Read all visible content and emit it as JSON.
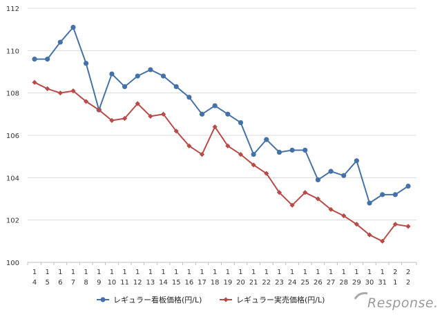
{
  "chart_data": {
    "type": "line",
    "x": [
      [
        "1",
        "4"
      ],
      [
        "1",
        "5"
      ],
      [
        "1",
        "6"
      ],
      [
        "1",
        "7"
      ],
      [
        "1",
        "8"
      ],
      [
        "1",
        "9"
      ],
      [
        "1",
        "10"
      ],
      [
        "1",
        "11"
      ],
      [
        "1",
        "12"
      ],
      [
        "1",
        "13"
      ],
      [
        "1",
        "14"
      ],
      [
        "1",
        "15"
      ],
      [
        "1",
        "16"
      ],
      [
        "1",
        "17"
      ],
      [
        "1",
        "18"
      ],
      [
        "1",
        "19"
      ],
      [
        "1",
        "20"
      ],
      [
        "1",
        "21"
      ],
      [
        "1",
        "22"
      ],
      [
        "1",
        "23"
      ],
      [
        "1",
        "24"
      ],
      [
        "1",
        "25"
      ],
      [
        "1",
        "26"
      ],
      [
        "1",
        "27"
      ],
      [
        "1",
        "28"
      ],
      [
        "1",
        "29"
      ],
      [
        "1",
        "30"
      ],
      [
        "1",
        "31"
      ],
      [
        "2",
        "1"
      ],
      [
        "2",
        "2"
      ]
    ],
    "ylim": [
      100,
      112
    ],
    "yticks": [
      "100",
      "102",
      "104",
      "106",
      "108",
      "110",
      "112"
    ],
    "grid": true,
    "legend_position": "bottom",
    "series": [
      {
        "name": "レギュラー看板価格(円/L)",
        "color": "#4472a8",
        "marker": "circle",
        "values": [
          109.6,
          109.6,
          110.4,
          111.1,
          109.4,
          107.2,
          108.9,
          108.3,
          108.8,
          109.1,
          108.8,
          108.3,
          107.8,
          107.0,
          107.4,
          107.0,
          106.6,
          105.1,
          105.8,
          105.2,
          105.3,
          105.3,
          103.9,
          104.3,
          104.1,
          104.8,
          102.8,
          103.2,
          103.2,
          103.6
        ]
      },
      {
        "name": "レギュラー実売価格(円/L)",
        "color": "#b84a48",
        "marker": "diamond",
        "values": [
          108.5,
          108.2,
          108.0,
          108.1,
          107.6,
          107.2,
          106.7,
          106.8,
          107.5,
          106.9,
          107.0,
          106.2,
          105.5,
          105.1,
          106.4,
          105.5,
          105.1,
          104.6,
          104.2,
          103.3,
          102.7,
          103.3,
          103.0,
          102.5,
          102.2,
          101.8,
          101.3,
          101.0,
          101.8,
          101.7
        ]
      }
    ]
  },
  "watermark": {
    "text": "Response."
  }
}
